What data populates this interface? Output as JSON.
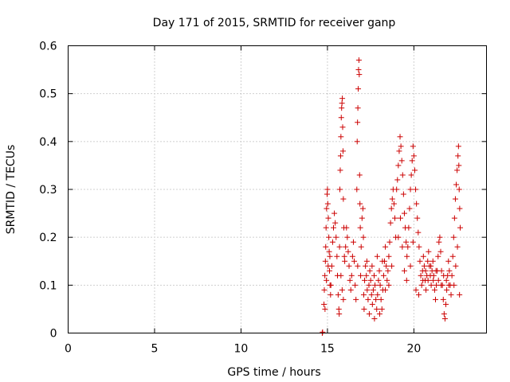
{
  "chart_data": {
    "type": "scatter",
    "title": "Day 171 of 2015, SRMTID for receiver ganp",
    "xlabel": "GPS time / hours",
    "ylabel": "SRMTID / TECUs",
    "xlim": [
      0,
      24.2
    ],
    "ylim": [
      0,
      0.6
    ],
    "xticks": [
      0,
      5,
      10,
      15,
      20
    ],
    "xtick_labels": [
      "0",
      "5",
      "10",
      "15",
      "20"
    ],
    "yticks": [
      0,
      0.1,
      0.2,
      0.3,
      0.4,
      0.5,
      0.6
    ],
    "ytick_labels": [
      "0",
      "0.1",
      "0.2",
      "0.3",
      "0.4",
      "0.5",
      "0.6"
    ],
    "grid": true,
    "marker": "+",
    "marker_color": "#cc0000",
    "series": [
      {
        "name": "SRMTID",
        "points": [
          [
            14.7,
            0.0
          ],
          [
            14.72,
            0.002
          ],
          [
            14.8,
            0.06
          ],
          [
            14.82,
            0.09
          ],
          [
            14.85,
            0.12
          ],
          [
            14.88,
            0.15
          ],
          [
            14.9,
            0.18
          ],
          [
            14.92,
            0.22
          ],
          [
            14.95,
            0.26
          ],
          [
            14.98,
            0.29
          ],
          [
            15.0,
            0.3
          ],
          [
            15.02,
            0.27
          ],
          [
            15.05,
            0.24
          ],
          [
            15.08,
            0.2
          ],
          [
            15.1,
            0.17
          ],
          [
            15.12,
            0.13
          ],
          [
            15.15,
            0.1
          ],
          [
            15.18,
            0.08
          ],
          [
            14.86,
            0.05
          ],
          [
            14.94,
            0.11
          ],
          [
            15.04,
            0.14
          ],
          [
            15.14,
            0.16
          ],
          [
            15.2,
            0.1
          ],
          [
            15.25,
            0.14
          ],
          [
            15.3,
            0.19
          ],
          [
            15.35,
            0.22
          ],
          [
            15.4,
            0.25
          ],
          [
            15.45,
            0.23
          ],
          [
            15.5,
            0.2
          ],
          [
            15.55,
            0.16
          ],
          [
            15.58,
            0.12
          ],
          [
            15.62,
            0.08
          ],
          [
            15.66,
            0.05
          ],
          [
            15.68,
            0.04
          ],
          [
            15.7,
            0.18
          ],
          [
            15.72,
            0.3
          ],
          [
            15.74,
            0.34
          ],
          [
            15.76,
            0.37
          ],
          [
            15.78,
            0.41
          ],
          [
            15.8,
            0.45
          ],
          [
            15.82,
            0.47
          ],
          [
            15.84,
            0.48
          ],
          [
            15.86,
            0.49
          ],
          [
            15.88,
            0.43
          ],
          [
            15.9,
            0.38
          ],
          [
            15.92,
            0.28
          ],
          [
            15.95,
            0.22
          ],
          [
            15.98,
            0.16
          ],
          [
            15.78,
            0.12
          ],
          [
            15.85,
            0.09
          ],
          [
            15.92,
            0.07
          ],
          [
            16.0,
            0.15
          ],
          [
            16.05,
            0.18
          ],
          [
            16.1,
            0.22
          ],
          [
            16.15,
            0.2
          ],
          [
            16.2,
            0.17
          ],
          [
            16.25,
            0.14
          ],
          [
            16.3,
            0.11
          ],
          [
            16.35,
            0.09
          ],
          [
            16.4,
            0.12
          ],
          [
            16.45,
            0.16
          ],
          [
            16.5,
            0.19
          ],
          [
            16.55,
            0.15
          ],
          [
            16.6,
            0.1
          ],
          [
            16.65,
            0.07
          ],
          [
            16.7,
            0.3
          ],
          [
            16.72,
            0.4
          ],
          [
            16.74,
            0.44
          ],
          [
            16.76,
            0.47
          ],
          [
            16.78,
            0.51
          ],
          [
            16.8,
            0.55
          ],
          [
            16.82,
            0.57
          ],
          [
            16.84,
            0.54
          ],
          [
            16.86,
            0.33
          ],
          [
            16.88,
            0.27
          ],
          [
            16.9,
            0.22
          ],
          [
            16.95,
            0.18
          ],
          [
            17.0,
            0.24
          ],
          [
            17.05,
            0.26
          ],
          [
            17.08,
            0.2
          ],
          [
            16.75,
            0.14
          ],
          [
            16.92,
            0.12
          ],
          [
            17.1,
            0.08
          ],
          [
            17.15,
            0.11
          ],
          [
            17.2,
            0.14
          ],
          [
            17.25,
            0.12
          ],
          [
            17.3,
            0.09
          ],
          [
            17.35,
            0.07
          ],
          [
            17.4,
            0.1
          ],
          [
            17.45,
            0.13
          ],
          [
            17.5,
            0.11
          ],
          [
            17.55,
            0.08
          ],
          [
            17.6,
            0.06
          ],
          [
            17.65,
            0.09
          ],
          [
            17.7,
            0.12
          ],
          [
            17.75,
            0.1
          ],
          [
            17.8,
            0.07
          ],
          [
            17.85,
            0.05
          ],
          [
            17.9,
            0.08
          ],
          [
            17.95,
            0.11
          ],
          [
            18.0,
            0.13
          ],
          [
            18.05,
            0.1
          ],
          [
            18.1,
            0.07
          ],
          [
            18.15,
            0.05
          ],
          [
            18.2,
            0.09
          ],
          [
            17.12,
            0.05
          ],
          [
            17.28,
            0.15
          ],
          [
            17.42,
            0.04
          ],
          [
            17.58,
            0.14
          ],
          [
            17.72,
            0.03
          ],
          [
            17.88,
            0.16
          ],
          [
            18.02,
            0.04
          ],
          [
            18.18,
            0.15
          ],
          [
            18.25,
            0.12
          ],
          [
            18.3,
            0.15
          ],
          [
            18.35,
            0.18
          ],
          [
            18.4,
            0.14
          ],
          [
            18.45,
            0.11
          ],
          [
            18.5,
            0.13
          ],
          [
            18.55,
            0.16
          ],
          [
            18.6,
            0.19
          ],
          [
            18.65,
            0.23
          ],
          [
            18.7,
            0.26
          ],
          [
            18.75,
            0.28
          ],
          [
            18.8,
            0.3
          ],
          [
            18.85,
            0.27
          ],
          [
            18.9,
            0.24
          ],
          [
            18.95,
            0.2
          ],
          [
            18.35,
            0.09
          ],
          [
            18.55,
            0.1
          ],
          [
            18.72,
            0.14
          ],
          [
            19.0,
            0.3
          ],
          [
            19.05,
            0.32
          ],
          [
            19.1,
            0.35
          ],
          [
            19.15,
            0.38
          ],
          [
            19.2,
            0.41
          ],
          [
            19.25,
            0.39
          ],
          [
            19.3,
            0.36
          ],
          [
            19.35,
            0.33
          ],
          [
            19.4,
            0.29
          ],
          [
            19.45,
            0.25
          ],
          [
            19.5,
            0.22
          ],
          [
            19.55,
            0.19
          ],
          [
            19.6,
            0.16
          ],
          [
            19.1,
            0.2
          ],
          [
            19.22,
            0.24
          ],
          [
            19.33,
            0.18
          ],
          [
            19.45,
            0.13
          ],
          [
            19.58,
            0.11
          ],
          [
            19.65,
            0.18
          ],
          [
            19.7,
            0.22
          ],
          [
            19.75,
            0.26
          ],
          [
            19.8,
            0.3
          ],
          [
            19.85,
            0.33
          ],
          [
            19.9,
            0.36
          ],
          [
            19.95,
            0.39
          ],
          [
            20.0,
            0.37
          ],
          [
            20.05,
            0.34
          ],
          [
            20.1,
            0.3
          ],
          [
            20.15,
            0.27
          ],
          [
            20.2,
            0.24
          ],
          [
            20.25,
            0.21
          ],
          [
            20.3,
            0.18
          ],
          [
            20.35,
            0.15
          ],
          [
            20.4,
            0.12
          ],
          [
            19.8,
            0.14
          ],
          [
            19.95,
            0.19
          ],
          [
            20.12,
            0.09
          ],
          [
            20.28,
            0.08
          ],
          [
            20.45,
            0.1
          ],
          [
            20.5,
            0.13
          ],
          [
            20.55,
            0.16
          ],
          [
            20.6,
            0.14
          ],
          [
            20.65,
            0.11
          ],
          [
            20.7,
            0.09
          ],
          [
            20.75,
            0.12
          ],
          [
            20.8,
            0.15
          ],
          [
            20.85,
            0.17
          ],
          [
            20.9,
            0.14
          ],
          [
            20.95,
            0.12
          ],
          [
            21.0,
            0.1
          ],
          [
            21.05,
            0.13
          ],
          [
            21.1,
            0.15
          ],
          [
            21.15,
            0.12
          ],
          [
            21.2,
            0.09
          ],
          [
            21.25,
            0.07
          ],
          [
            21.3,
            0.1
          ],
          [
            21.35,
            0.13
          ],
          [
            21.4,
            0.16
          ],
          [
            21.45,
            0.19
          ],
          [
            21.5,
            0.2
          ],
          [
            21.55,
            0.17
          ],
          [
            21.6,
            0.13
          ],
          [
            21.65,
            0.1
          ],
          [
            21.7,
            0.07
          ],
          [
            21.75,
            0.04
          ],
          [
            21.8,
            0.03
          ],
          [
            21.85,
            0.06
          ],
          [
            21.9,
            0.09
          ],
          [
            21.95,
            0.12
          ],
          [
            22.0,
            0.15
          ],
          [
            22.05,
            0.13
          ],
          [
            22.1,
            0.1
          ],
          [
            22.15,
            0.08
          ],
          [
            20.52,
            0.11
          ],
          [
            20.68,
            0.13
          ],
          [
            20.82,
            0.11
          ],
          [
            20.98,
            0.14
          ],
          [
            21.12,
            0.11
          ],
          [
            21.28,
            0.13
          ],
          [
            21.42,
            0.11
          ],
          [
            21.58,
            0.1
          ],
          [
            21.72,
            0.12
          ],
          [
            21.88,
            0.11
          ],
          [
            22.02,
            0.1
          ],
          [
            22.2,
            0.12
          ],
          [
            22.25,
            0.16
          ],
          [
            22.3,
            0.2
          ],
          [
            22.35,
            0.24
          ],
          [
            22.4,
            0.28
          ],
          [
            22.45,
            0.31
          ],
          [
            22.5,
            0.34
          ],
          [
            22.55,
            0.37
          ],
          [
            22.58,
            0.39
          ],
          [
            22.6,
            0.35
          ],
          [
            22.62,
            0.3
          ],
          [
            22.65,
            0.26
          ],
          [
            22.68,
            0.22
          ],
          [
            22.32,
            0.1
          ],
          [
            22.42,
            0.14
          ],
          [
            22.52,
            0.18
          ],
          [
            22.64,
            0.08
          ]
        ]
      }
    ]
  }
}
